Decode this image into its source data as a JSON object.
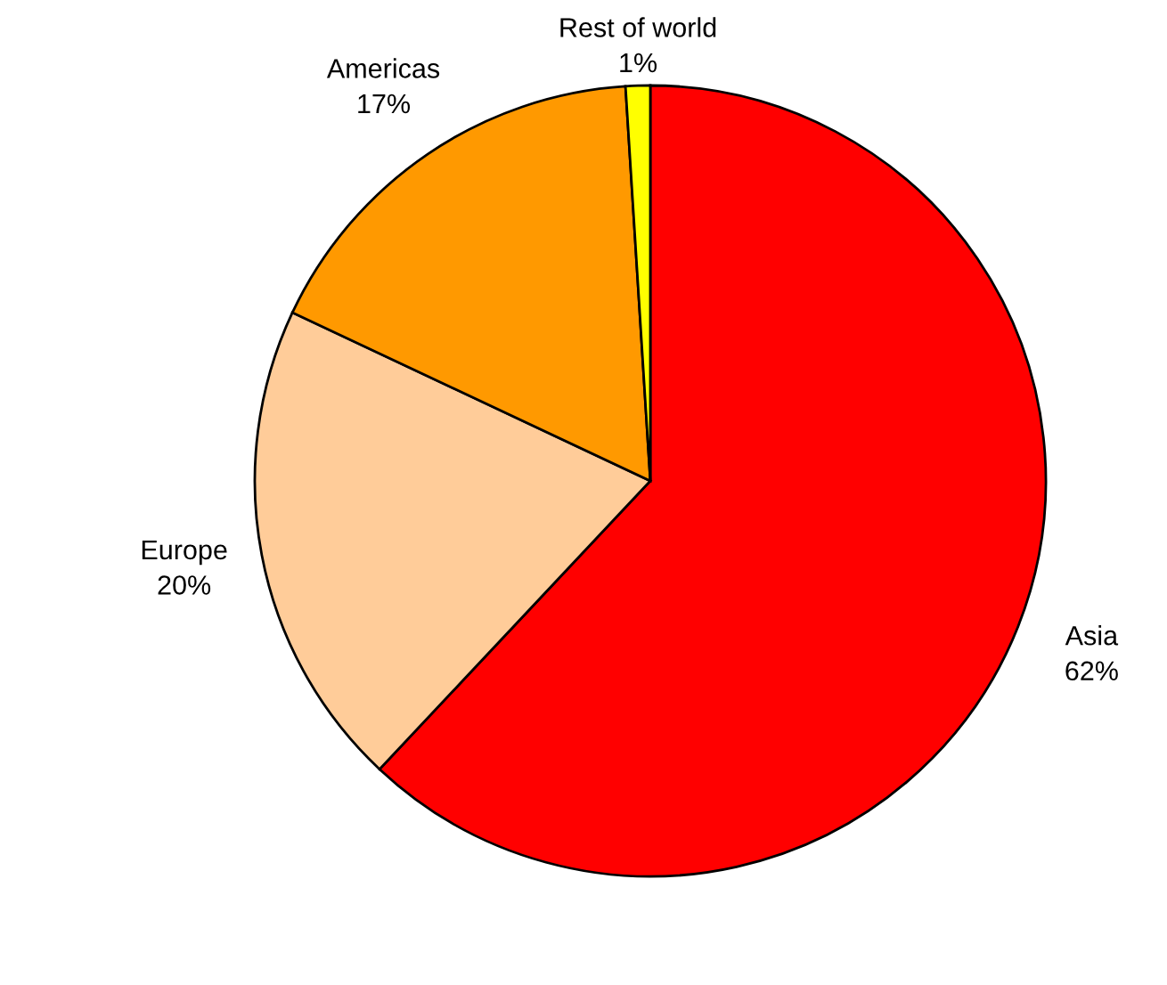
{
  "chart_data": {
    "type": "pie",
    "categories": [
      "Asia",
      "Europe",
      "Americas",
      "Rest of world"
    ],
    "values": [
      62,
      20,
      17,
      1
    ],
    "colors": [
      "#ff0000",
      "#ffcc99",
      "#ff9900",
      "#ffff00"
    ],
    "value_labels": [
      "62%",
      "20%",
      "17%",
      "1%"
    ]
  }
}
